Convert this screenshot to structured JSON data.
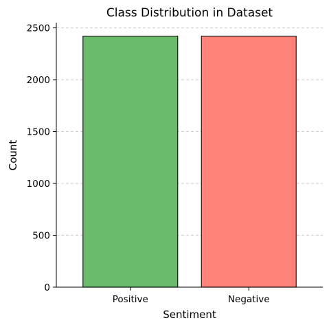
{
  "chart_data": {
    "type": "bar",
    "title": "Class Distribution in Dataset",
    "xlabel": "Sentiment",
    "ylabel": "Count",
    "categories": [
      "Positive",
      "Negative"
    ],
    "values": [
      2420,
      2420
    ],
    "colors": [
      "#6abb6b",
      "#ff8378"
    ],
    "ylim": [
      0,
      2550
    ],
    "yticks": [
      0,
      500,
      1000,
      1500,
      2000,
      2500
    ],
    "ytick_labels": [
      "0",
      "500",
      "1000",
      "1500",
      "2000",
      "2500"
    ],
    "grid": "y-dashed",
    "legend": "none"
  }
}
